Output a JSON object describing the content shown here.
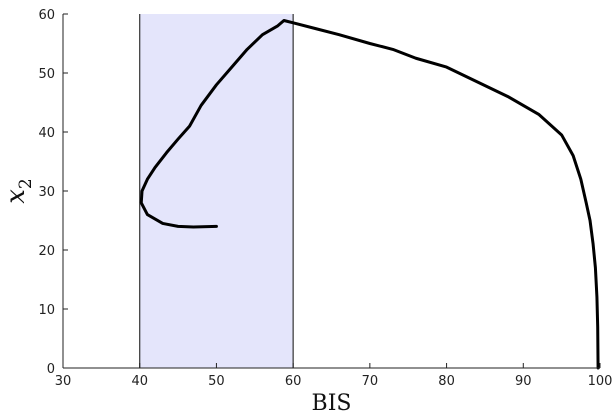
{
  "chart_data": {
    "type": "line",
    "title": "",
    "xlabel": "BIS",
    "ylabel": "x_2",
    "xlim": [
      30,
      100
    ],
    "ylim": [
      0,
      60
    ],
    "xticks": [
      "30",
      "40",
      "50",
      "60",
      "70",
      "80",
      "90",
      "100"
    ],
    "yticks": [
      "0",
      "10",
      "20",
      "30",
      "40",
      "50",
      "60"
    ],
    "grid": false,
    "legend": "none",
    "shaded_band": {
      "x_from": 40,
      "x_to": 60,
      "color": "#e4e5fb"
    },
    "vertical_lines": [
      40,
      60
    ],
    "series": [
      {
        "line_color": "#000000",
        "points": [
          [
            50,
            24
          ],
          [
            47,
            23.9
          ],
          [
            45,
            24
          ],
          [
            43,
            24.5
          ],
          [
            41,
            26
          ],
          [
            40.2,
            28
          ],
          [
            40.3,
            30
          ],
          [
            41,
            32
          ],
          [
            42,
            34
          ],
          [
            43.5,
            36.5
          ],
          [
            45,
            38.8
          ],
          [
            46.5,
            41
          ],
          [
            48,
            44.5
          ],
          [
            50,
            48
          ],
          [
            52,
            51
          ],
          [
            54,
            54
          ],
          [
            56,
            56.5
          ],
          [
            58,
            58
          ],
          [
            58.8,
            58.9
          ],
          [
            60,
            58.5
          ],
          [
            63,
            57.5
          ],
          [
            66,
            56.5
          ],
          [
            70,
            55
          ],
          [
            73,
            54
          ],
          [
            76,
            52.5
          ],
          [
            80,
            51
          ],
          [
            84,
            48.5
          ],
          [
            88,
            46
          ],
          [
            92,
            43
          ],
          [
            95,
            39.5
          ],
          [
            96.5,
            36
          ],
          [
            97.5,
            32
          ],
          [
            98.2,
            28
          ],
          [
            98.7,
            25
          ],
          [
            99.1,
            21
          ],
          [
            99.4,
            17
          ],
          [
            99.6,
            12
          ],
          [
            99.7,
            7
          ],
          [
            99.75,
            0
          ]
        ]
      }
    ]
  }
}
